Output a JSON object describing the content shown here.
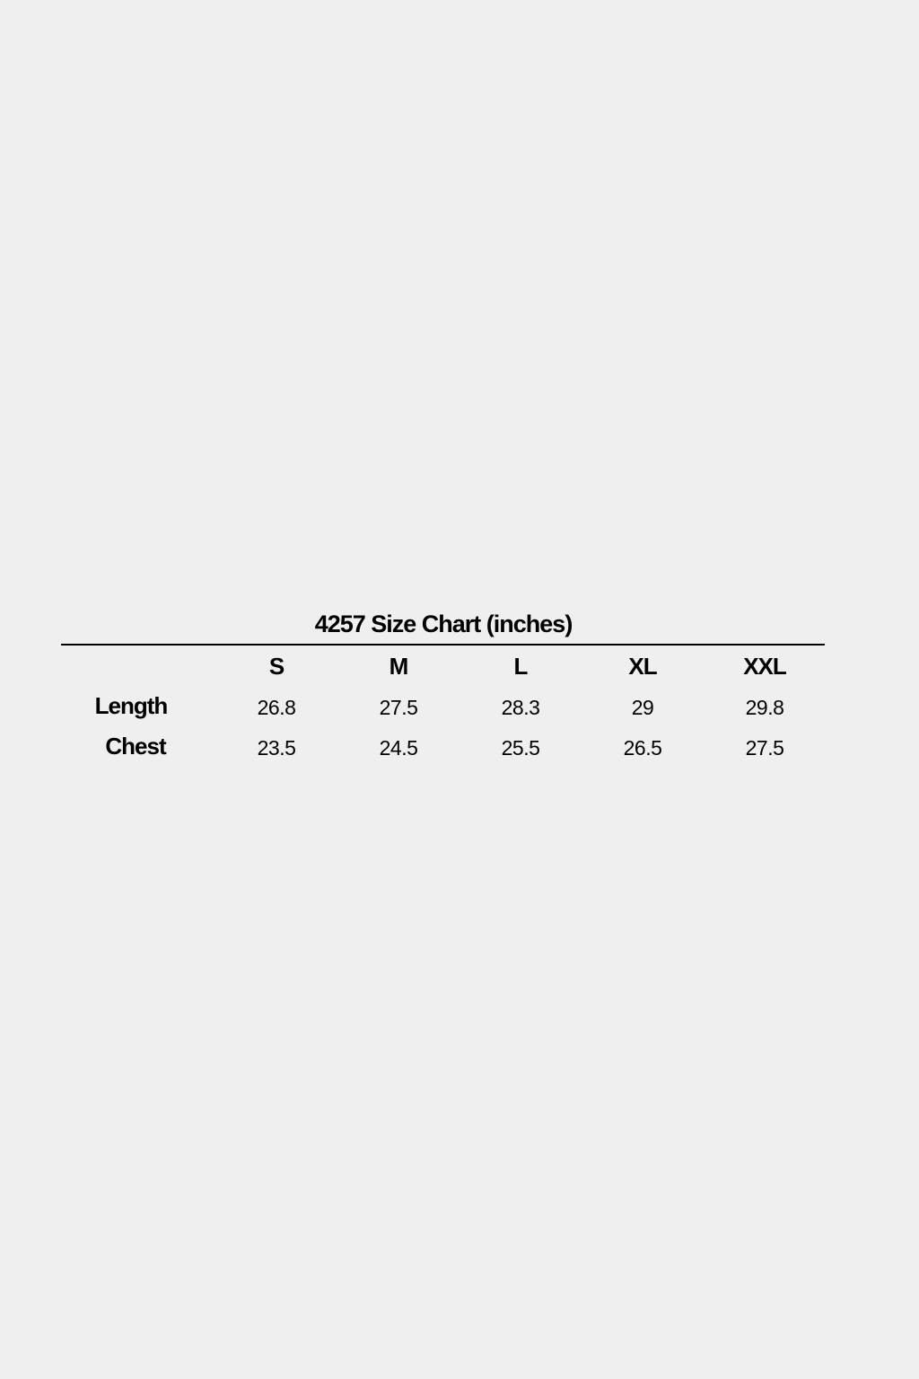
{
  "title": "4257 Size Chart (inches)",
  "sizes": [
    "S",
    "M",
    "L",
    "XL",
    "XXL"
  ],
  "rows": [
    {
      "label": "Length",
      "values": [
        "26.8",
        "27.5",
        "28.3",
        "29",
        "29.8"
      ]
    },
    {
      "label": "Chest",
      "values": [
        "23.5",
        "24.5",
        "25.5",
        "26.5",
        "27.5"
      ]
    }
  ]
}
